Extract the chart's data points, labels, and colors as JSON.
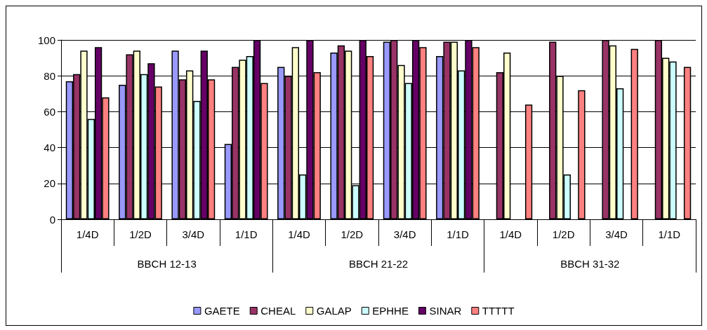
{
  "chart_data": {
    "type": "bar",
    "categories": [
      "1/4D",
      "1/2D",
      "3/4D",
      "1/1D",
      "1/4D",
      "1/2D",
      "3/4D",
      "1/1D",
      "1/4D",
      "1/2D",
      "3/4D",
      "1/1D"
    ],
    "annotations": [
      "BBCH 12-13",
      "BBCH 21-22",
      "BBCH 31-32"
    ],
    "series": [
      {
        "name": "GAETE",
        "color": "#9999ff",
        "values": [
          77,
          75,
          94,
          42,
          85,
          93,
          99,
          91,
          null,
          null,
          null,
          null
        ]
      },
      {
        "name": "CHEAL",
        "color": "#993366",
        "values": [
          81,
          92,
          78,
          85,
          80,
          97,
          100,
          99,
          82,
          99,
          100,
          100
        ]
      },
      {
        "name": "GALAP",
        "color": "#ffffcc",
        "values": [
          94,
          94,
          83,
          89,
          96,
          94,
          86,
          99,
          93,
          80,
          97,
          90
        ]
      },
      {
        "name": "EPHHE",
        "color": "#ccffff",
        "values": [
          56,
          81,
          66,
          91,
          25,
          19,
          76,
          83,
          null,
          25,
          73,
          88
        ]
      },
      {
        "name": "SINAR",
        "color": "#660066",
        "values": [
          96,
          87,
          94,
          100,
          100,
          100,
          100,
          100,
          null,
          null,
          null,
          null
        ]
      },
      {
        "name": "TTTTT",
        "color": "#ff8080",
        "values": [
          68,
          74,
          78,
          76,
          82,
          91,
          96,
          96,
          64,
          72,
          95,
          85
        ]
      }
    ],
    "ylim": [
      0,
      100
    ],
    "yticks": [
      0,
      20,
      40,
      60,
      80,
      100
    ],
    "grid": "y",
    "legend": "bottom"
  }
}
